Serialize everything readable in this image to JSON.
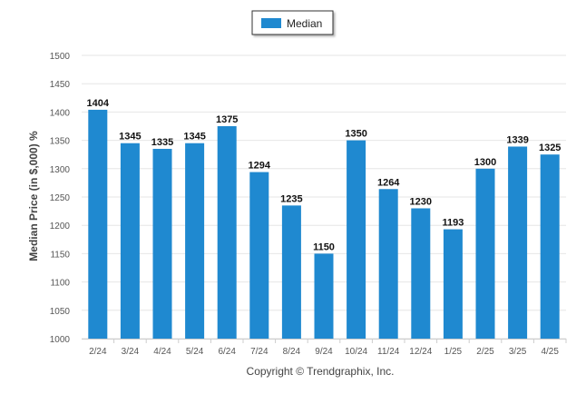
{
  "chart_data": {
    "type": "bar",
    "categories": [
      "2/24",
      "3/24",
      "4/24",
      "5/24",
      "6/24",
      "7/24",
      "8/24",
      "9/24",
      "10/24",
      "11/24",
      "12/24",
      "1/25",
      "2/25",
      "3/25",
      "4/25"
    ],
    "series": [
      {
        "name": "Median",
        "values": [
          1404,
          1345,
          1335,
          1345,
          1375,
          1294,
          1235,
          1150,
          1350,
          1264,
          1230,
          1193,
          1300,
          1339,
          1325
        ],
        "color": "#1f89d0"
      }
    ],
    "xlabel": "",
    "ylabel": "Median Price (in $,000) %",
    "ylim": [
      1000,
      1500
    ],
    "yticks": [
      "1000",
      "1050",
      "1100",
      "1150",
      "1200",
      "1250",
      "1300",
      "1350",
      "1400",
      "1450",
      "1500"
    ],
    "grid": true,
    "legend_position": "top-center",
    "data_labels": true
  },
  "credits": "Copyright © Trendgraphix, Inc."
}
